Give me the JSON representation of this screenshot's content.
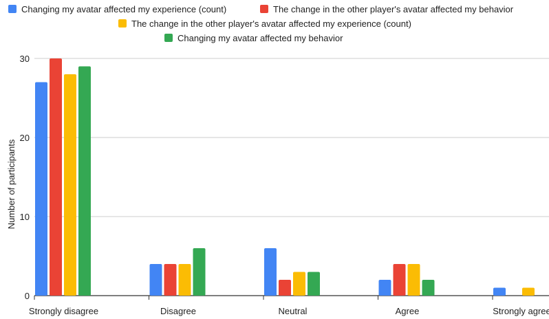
{
  "chart_data": {
    "type": "bar",
    "categories": [
      "Strongly disagree",
      "Disagree",
      "Neutral",
      "Agree",
      "Strongly agree"
    ],
    "series": [
      {
        "name": "Changing my avatar affected my experience (count)",
        "color": "#4285f4",
        "values": [
          27,
          4,
          6,
          2,
          1
        ]
      },
      {
        "name": "The change in the other player's avatar affected my behavior",
        "color": "#ea4335",
        "values": [
          30,
          4,
          2,
          4,
          0
        ]
      },
      {
        "name": "The change in the other player's avatar affected my experience (count)",
        "color": "#fbbc04",
        "values": [
          28,
          4,
          3,
          4,
          1
        ]
      },
      {
        "name": "Changing my avatar affected my behavior",
        "color": "#34a853",
        "values": [
          29,
          6,
          3,
          2,
          0
        ]
      }
    ],
    "xlabel": "",
    "ylabel": "Number of participants",
    "ylim": [
      0,
      30
    ],
    "yticks": [
      "0",
      "10",
      "20",
      "30"
    ],
    "grid": true,
    "legend_position": "top"
  }
}
